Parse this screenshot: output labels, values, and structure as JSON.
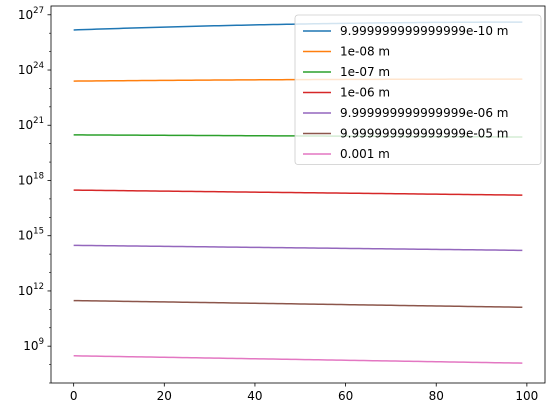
{
  "chart_data": {
    "type": "line",
    "title": "",
    "xlabel": "",
    "ylabel": "",
    "x": {
      "start": 0,
      "end": 99
    },
    "xlim": [
      -5,
      104
    ],
    "ylim": [
      10000000.0,
      3e+27
    ],
    "yscale": "log",
    "grid": false,
    "legend_position": "top-right",
    "x_ticks": [
      0,
      20,
      40,
      60,
      80,
      100
    ],
    "x_tick_labels": [
      "0",
      "20",
      "40",
      "60",
      "80",
      "100"
    ],
    "y_ticks": [
      9,
      12,
      15,
      18,
      21,
      24,
      27
    ],
    "y_tick_labels": [
      {
        "base": "10",
        "exp": "9"
      },
      {
        "base": "10",
        "exp": "12"
      },
      {
        "base": "10",
        "exp": "15"
      },
      {
        "base": "10",
        "exp": "18"
      },
      {
        "base": "10",
        "exp": "21"
      },
      {
        "base": "10",
        "exp": "24"
      },
      {
        "base": "10",
        "exp": "27"
      }
    ],
    "series": [
      {
        "name": "9.999999999999999e-10 m",
        "color": "#1f77b4",
        "start": 1.5e+26,
        "end": 4e+26,
        "shape": "saturating"
      },
      {
        "name": "1e-08 m",
        "color": "#ff7f0e",
        "start": 2.5e+23,
        "end": 3.2e+23,
        "shape": "saturating"
      },
      {
        "name": "1e-07 m",
        "color": "#2ca02c",
        "start": 3e+20,
        "end": 2.3e+20,
        "shape": "linear"
      },
      {
        "name": "1e-06 m",
        "color": "#d62728",
        "start": 3e+17,
        "end": 1.6e+17,
        "shape": "linear"
      },
      {
        "name": "9.999999999999999e-06 m",
        "color": "#9467bd",
        "start": 300000000000000.0,
        "end": 160000000000000.0,
        "shape": "linear"
      },
      {
        "name": "9.999999999999999e-05 m",
        "color": "#8c564b",
        "start": 300000000000.0,
        "end": 130000000000.0,
        "shape": "linear"
      },
      {
        "name": "0.001 m",
        "color": "#e377c2",
        "start": 300000000.0,
        "end": 120000000.0,
        "shape": "linear"
      }
    ]
  }
}
